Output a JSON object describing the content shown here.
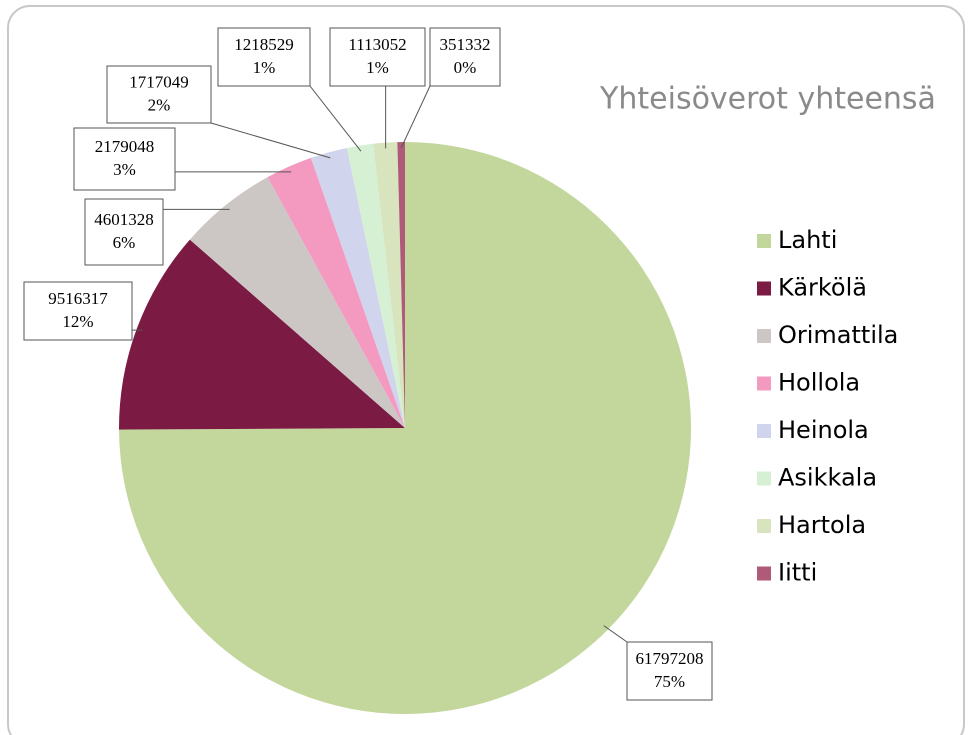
{
  "chart_data": {
    "type": "pie",
    "title": "Yhteisöverot yhteensä",
    "categories": [
      "Lahti",
      "Kärkölä",
      "Orimattila",
      "Hollola",
      "Heinola",
      "Asikkala",
      "Hartola",
      "Iitti"
    ],
    "values": [
      61797208,
      9516317,
      4601328,
      2179048,
      1717049,
      1218529,
      1113052,
      351332
    ],
    "percent_labels": [
      "75%",
      "12%",
      "6%",
      "3%",
      "2%",
      "1%",
      "1%",
      "0%"
    ],
    "colors": [
      "#c3d69b",
      "#7b1a43",
      "#ccc6c4",
      "#f49ac1",
      "#d0d4ec",
      "#d6f0d4",
      "#d7e4bd",
      "#b05a7a"
    ],
    "legend": "right"
  }
}
